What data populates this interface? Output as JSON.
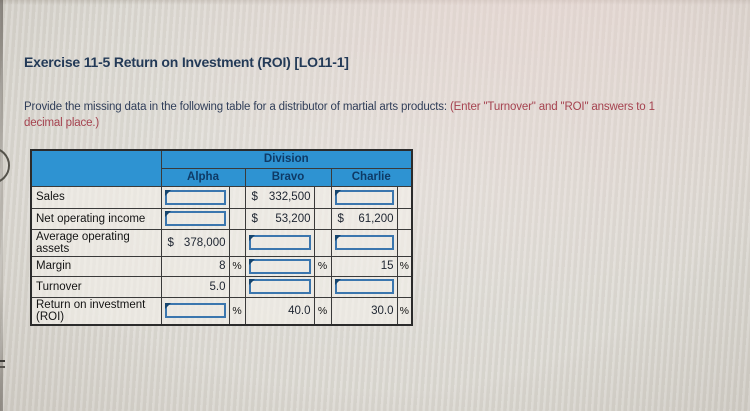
{
  "page": {
    "title": "Exercise 11-5 Return on Investment (ROI) [LO11-1]",
    "instructions": {
      "normal": "Provide the missing data in the following table for a distributor of martial arts products: ",
      "emphasis_line1": "(Enter \"Turnover\" and \"ROI\" answers to 1",
      "emphasis_line2": "decimal place.)"
    }
  },
  "table": {
    "division_label": "Division",
    "column_headers": [
      "Alpha",
      "Bravo",
      "Charlie"
    ],
    "dollar_symbol": "$",
    "percent_symbol": "%",
    "rows": [
      {
        "label": "Sales",
        "alpha": {
          "type": "input"
        },
        "bravo": {
          "type": "currency",
          "value": "332,500"
        },
        "charlie": {
          "type": "input"
        }
      },
      {
        "label": "Net operating income",
        "alpha": {
          "type": "input"
        },
        "bravo": {
          "type": "currency",
          "value": "53,200"
        },
        "charlie": {
          "type": "currency",
          "value": "61,200"
        }
      },
      {
        "label": "Average operating assets",
        "alpha": {
          "type": "currency",
          "value": "378,000"
        },
        "bravo": {
          "type": "input"
        },
        "charlie": {
          "type": "input"
        }
      },
      {
        "label": "Margin",
        "alpha": {
          "type": "number",
          "value": "8",
          "suffix": "%"
        },
        "bravo": {
          "type": "input",
          "suffix": "%"
        },
        "charlie": {
          "type": "number",
          "value": "15",
          "suffix": "%"
        }
      },
      {
        "label": "Turnover",
        "alpha": {
          "type": "number",
          "value": "5.0"
        },
        "bravo": {
          "type": "input"
        },
        "charlie": {
          "type": "input"
        }
      },
      {
        "label": "Return on investment (ROI)",
        "alpha": {
          "type": "input",
          "suffix": "%"
        },
        "bravo": {
          "type": "number",
          "value": "40.0",
          "suffix": "%"
        },
        "charlie": {
          "type": "number",
          "value": "30.0",
          "suffix": "%"
        }
      }
    ]
  },
  "colors": {
    "header_blue": "#2e93d2",
    "header_text_navy": "#0e3a66",
    "input_border_blue": "#3b76ae",
    "emphasis_red": "#a5424f",
    "title_navy": "#233a57"
  }
}
